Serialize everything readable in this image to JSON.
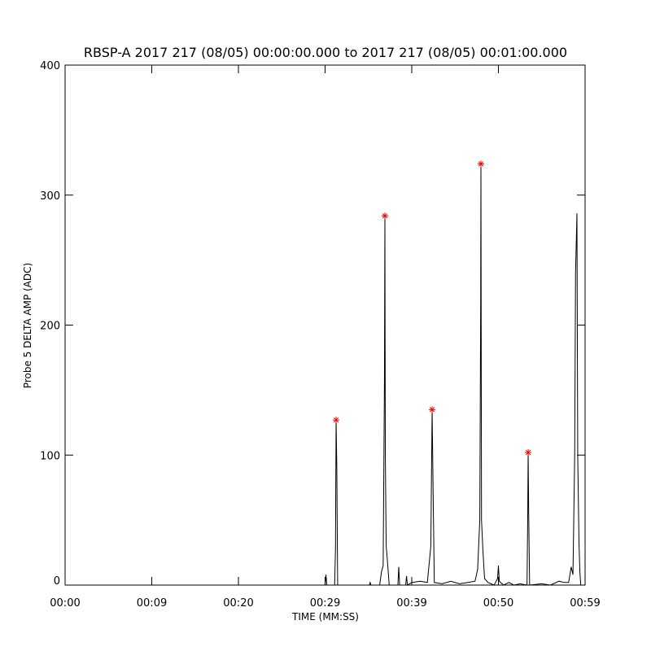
{
  "chart_data": {
    "type": "line",
    "title": "RBSP-A 2017 217 (08/05) 00:00:00.000 to 2017 217 (08/05) 00:01:00.000",
    "xlabel": "TIME (MM:SS)",
    "ylabel": "Probe 5 DELTA AMP (ADC)",
    "xlim": [
      0,
      60
    ],
    "ylim": [
      0,
      400
    ],
    "xticks": [
      {
        "value": 0,
        "label": "00:00"
      },
      {
        "value": 10,
        "label": "00:09"
      },
      {
        "value": 20,
        "label": "00:20"
      },
      {
        "value": 30,
        "label": "00:29"
      },
      {
        "value": 40,
        "label": "00:39"
      },
      {
        "value": 50,
        "label": "00:50"
      },
      {
        "value": 60,
        "label": "00:59"
      }
    ],
    "yticks": [
      0,
      100,
      200,
      300,
      400
    ],
    "series": [
      {
        "type": "line",
        "color": "#000000",
        "x": [
          0,
          30.0,
          30.1,
          30.2,
          31.1,
          31.2,
          31.27,
          31.35,
          31.45,
          35.1,
          35.2,
          35.3,
          36.3,
          36.5,
          36.7,
          36.85,
          36.9,
          36.95,
          37.05,
          37.2,
          37.4,
          38.4,
          38.5,
          38.6,
          39.3,
          39.4,
          39.5,
          40.0,
          41.0,
          41.8,
          42.2,
          42.35,
          42.45,
          42.6,
          43.5,
          44.5,
          45.5,
          46.5,
          47.3,
          47.6,
          47.85,
          47.95,
          47.98,
          48.05,
          48.2,
          48.4,
          48.8,
          49.5,
          49.9,
          50.0,
          50.1,
          50.6,
          51.2,
          51.8,
          52.5,
          53.3,
          53.38,
          53.43,
          53.5,
          53.6,
          55.0,
          56.0,
          57.0,
          57.6,
          58.1,
          58.4,
          58.6,
          58.8,
          58.9,
          59.06,
          59.15,
          59.3,
          59.4,
          59.5,
          60.0
        ],
        "values": [
          0,
          0,
          8,
          0,
          0,
          28,
          127,
          91,
          0,
          0,
          2,
          0,
          0,
          10,
          15,
          158,
          284,
          100,
          30,
          18,
          0,
          0,
          14,
          0,
          0,
          7,
          0,
          2,
          3,
          2,
          30,
          135,
          80,
          2,
          1,
          3,
          1,
          2,
          3,
          12,
          50,
          212,
          324,
          50,
          28,
          5,
          2,
          0,
          5,
          15,
          3,
          0,
          2,
          0,
          1,
          0,
          52,
          102,
          52,
          0,
          1,
          0,
          3,
          2,
          2,
          14,
          8,
          100,
          240,
          286,
          100,
          32,
          10,
          0,
          0
        ]
      },
      {
        "type": "scatter",
        "color": "#ff0000",
        "marker": "*",
        "x": [
          31.27,
          36.9,
          42.35,
          47.98,
          53.43
        ],
        "values": [
          127,
          284,
          135,
          324,
          102
        ]
      }
    ]
  }
}
